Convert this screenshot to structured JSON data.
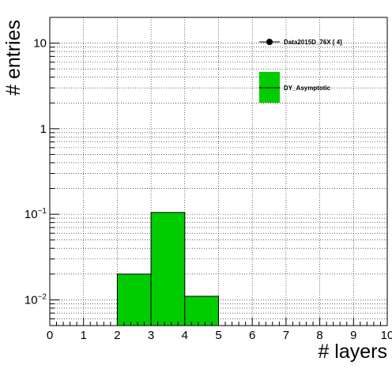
{
  "chart_data": {
    "type": "bar",
    "histogram": true,
    "xlabel": "# layers",
    "ylabel": "# entries",
    "xlim": [
      0,
      10
    ],
    "ylim": [
      0.005,
      20
    ],
    "yscale": "log",
    "grid": true,
    "x_ticks": [
      "0",
      "1",
      "2",
      "3",
      "4",
      "5",
      "6",
      "7",
      "8",
      "9",
      "10"
    ],
    "y_ticks": [
      {
        "value": 0.01,
        "base": "10",
        "exp": "−2"
      },
      {
        "value": 0.1,
        "base": "10",
        "exp": "−1"
      },
      {
        "value": 1,
        "base": "1",
        "exp": ""
      },
      {
        "value": 10,
        "base": "10",
        "exp": ""
      }
    ],
    "series": [
      {
        "name": "DY_Asymptotic",
        "color": "#00cc00",
        "bins": [
          {
            "x0": 2,
            "x1": 3,
            "value": 0.02
          },
          {
            "x0": 3,
            "x1": 4,
            "value": 0.105
          },
          {
            "x0": 4,
            "x1": 5,
            "value": 0.011
          }
        ]
      },
      {
        "name": "Data2015D_76X [        4]",
        "color": "#000000",
        "marker": "circle",
        "bins": []
      }
    ],
    "legend": {
      "position": "top-right",
      "entries": [
        "Data2015D_76X [        4]",
        "DY_Asymptotic"
      ]
    }
  }
}
